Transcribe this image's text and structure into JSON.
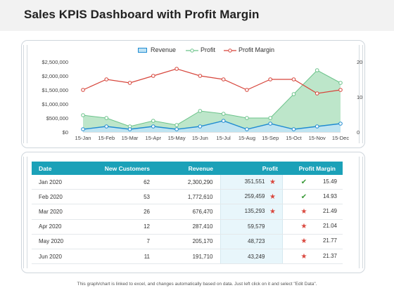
{
  "page": {
    "title": "Sales KPIS Dashboard with Profit Margin",
    "footer": "This graph/chart is linked to excel, and changes automatically based on data. Just left click on it and select \"Edit Data\"."
  },
  "colors": {
    "revenue": "#1f8bd1",
    "revenue_fill": "#bfe3f5",
    "profit": "#6cc38b",
    "profit_fill": "#a7ddb8",
    "profit_margin": "#d7453b",
    "table_header": "#1ba1b8",
    "star": "#d9463c",
    "check": "#3a9a38"
  },
  "chart_data": {
    "type": "area",
    "x": [
      "15-Jan",
      "15-Feb",
      "15-Mar",
      "15-Apr",
      "15-May",
      "15-Jun",
      "15-Jul",
      "15-Aug",
      "15-Sep",
      "15-Oct",
      "15-Nov",
      "15-Dec"
    ],
    "series": [
      {
        "name": "Revenue",
        "type": "area",
        "axis": "left",
        "values": [
          100000,
          200000,
          100000,
          200000,
          100000,
          200000,
          400000,
          100000,
          300000,
          100000,
          200000,
          300000
        ]
      },
      {
        "name": "Profit",
        "type": "area",
        "axis": "left",
        "values": [
          600000,
          500000,
          200000,
          400000,
          250000,
          750000,
          650000,
          500000,
          500000,
          1350000,
          2200000,
          1750000
        ]
      },
      {
        "name": "Profit Margin",
        "type": "line",
        "axis": "right",
        "values": [
          12,
          15,
          14,
          16,
          18,
          16,
          15,
          12,
          15,
          15,
          11,
          12
        ]
      }
    ],
    "y_left": {
      "min": 0,
      "max": 2500000,
      "ticks": [
        "$0",
        "$500,000",
        "$1,000,000",
        "$1,500,000",
        "$2,000,000",
        "$2,500,000"
      ]
    },
    "y_right": {
      "min": 0,
      "max": 20,
      "ticks": [
        "0",
        "10",
        "20"
      ]
    },
    "legend_position": "top",
    "grid": false
  },
  "table": {
    "headers": [
      "Date",
      "New Customers",
      "Revenue",
      "Profit",
      "Profit Margin"
    ],
    "rows": [
      {
        "date": "Jan 2020",
        "customers": "62",
        "revenue": "2,300,290",
        "profit": "351,551",
        "profit_icon": "star",
        "margin_icon": "check",
        "margin": "15.49"
      },
      {
        "date": "Feb 2020",
        "customers": "53",
        "revenue": "1,772,610",
        "profit": "259,459",
        "profit_icon": "star",
        "margin_icon": "check",
        "margin": "14.93"
      },
      {
        "date": "Mar 2020",
        "customers": "26",
        "revenue": "676,470",
        "profit": "135,293",
        "profit_icon": "star",
        "margin_icon": "star",
        "margin": "21.49"
      },
      {
        "date": "Apr 2020",
        "customers": "12",
        "revenue": "287,410",
        "profit": "59,579",
        "profit_icon": "",
        "margin_icon": "star",
        "margin": "21.04"
      },
      {
        "date": "May 2020",
        "customers": "7",
        "revenue": "205,170",
        "profit": "48,723",
        "profit_icon": "",
        "margin_icon": "star",
        "margin": "21.77"
      },
      {
        "date": "Jun 2020",
        "customers": "11",
        "revenue": "191,710",
        "profit": "43,249",
        "profit_icon": "",
        "margin_icon": "star",
        "margin": "21.37"
      }
    ]
  }
}
